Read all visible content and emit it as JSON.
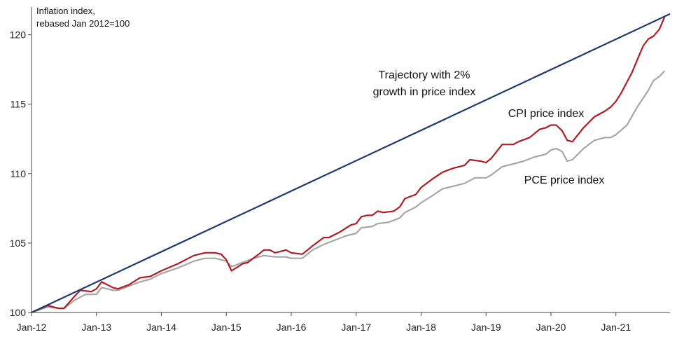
{
  "chart_data": {
    "type": "line",
    "title": "",
    "ylabel_lines": [
      "Inflation  index,",
      "rebased Jan 2012=100"
    ],
    "xlabel": "",
    "ylim": [
      100,
      122
    ],
    "yticks": [
      100,
      105,
      110,
      115,
      120
    ],
    "x_range": [
      2012.0,
      2021.833
    ],
    "xticks": [
      {
        "label": "Jan-12",
        "x": 2012
      },
      {
        "label": "Jan-13",
        "x": 2013
      },
      {
        "label": "Jan-14",
        "x": 2014
      },
      {
        "label": "Jan-15",
        "x": 2015
      },
      {
        "label": "Jan-16",
        "x": 2016
      },
      {
        "label": "Jan-17",
        "x": 2017
      },
      {
        "label": "Jan-18",
        "x": 2018
      },
      {
        "label": "Jan-19",
        "x": 2019
      },
      {
        "label": "Jan-20",
        "x": 2020
      },
      {
        "label": "Jan-21",
        "x": 2021
      }
    ],
    "grid": false,
    "legend": "none",
    "series": [
      {
        "name": "Trajectory with 2% growth in price index",
        "label_lines": [
          "Trajectory with 2%",
          "growth in price index"
        ],
        "color": "#1f3a6e",
        "points": [
          [
            2012.0,
            100.0
          ],
          [
            2021.833,
            121.5
          ]
        ]
      },
      {
        "name": "CPI price index",
        "label_lines": [
          "CPI price index"
        ],
        "color": "#b01c22",
        "points": [
          [
            2012.0,
            100.0
          ],
          [
            2012.25,
            100.5
          ],
          [
            2012.33,
            100.4
          ],
          [
            2012.42,
            100.3
          ],
          [
            2012.5,
            100.3
          ],
          [
            2012.67,
            101.2
          ],
          [
            2012.75,
            101.6
          ],
          [
            2012.92,
            101.5
          ],
          [
            2013.0,
            101.7
          ],
          [
            2013.08,
            102.2
          ],
          [
            2013.25,
            101.8
          ],
          [
            2013.33,
            101.7
          ],
          [
            2013.5,
            102.0
          ],
          [
            2013.67,
            102.5
          ],
          [
            2013.83,
            102.6
          ],
          [
            2014.0,
            103.0
          ],
          [
            2014.25,
            103.5
          ],
          [
            2014.5,
            104.1
          ],
          [
            2014.67,
            104.3
          ],
          [
            2014.83,
            104.3
          ],
          [
            2014.92,
            104.2
          ],
          [
            2015.0,
            103.8
          ],
          [
            2015.08,
            103.0
          ],
          [
            2015.25,
            103.5
          ],
          [
            2015.33,
            103.6
          ],
          [
            2015.5,
            104.2
          ],
          [
            2015.58,
            104.5
          ],
          [
            2015.67,
            104.5
          ],
          [
            2015.75,
            104.3
          ],
          [
            2015.92,
            104.5
          ],
          [
            2016.0,
            104.3
          ],
          [
            2016.17,
            104.2
          ],
          [
            2016.33,
            104.8
          ],
          [
            2016.5,
            105.4
          ],
          [
            2016.58,
            105.4
          ],
          [
            2016.75,
            105.8
          ],
          [
            2016.92,
            106.3
          ],
          [
            2017.0,
            106.4
          ],
          [
            2017.08,
            106.9
          ],
          [
            2017.17,
            107.0
          ],
          [
            2017.25,
            107.0
          ],
          [
            2017.33,
            107.3
          ],
          [
            2017.42,
            107.2
          ],
          [
            2017.58,
            107.3
          ],
          [
            2017.67,
            107.6
          ],
          [
            2017.75,
            108.2
          ],
          [
            2017.92,
            108.5
          ],
          [
            2018.0,
            109.0
          ],
          [
            2018.17,
            109.6
          ],
          [
            2018.33,
            110.1
          ],
          [
            2018.5,
            110.4
          ],
          [
            2018.67,
            110.6
          ],
          [
            2018.75,
            111.0
          ],
          [
            2018.92,
            110.9
          ],
          [
            2019.0,
            110.8
          ],
          [
            2019.08,
            111.1
          ],
          [
            2019.25,
            112.1
          ],
          [
            2019.42,
            112.1
          ],
          [
            2019.5,
            112.3
          ],
          [
            2019.67,
            112.6
          ],
          [
            2019.83,
            113.2
          ],
          [
            2019.92,
            113.3
          ],
          [
            2020.0,
            113.5
          ],
          [
            2020.08,
            113.5
          ],
          [
            2020.17,
            113.1
          ],
          [
            2020.25,
            112.4
          ],
          [
            2020.33,
            112.3
          ],
          [
            2020.5,
            113.3
          ],
          [
            2020.67,
            114.1
          ],
          [
            2020.83,
            114.5
          ],
          [
            2020.92,
            114.8
          ],
          [
            2021.0,
            115.2
          ],
          [
            2021.08,
            115.8
          ],
          [
            2021.25,
            117.3
          ],
          [
            2021.33,
            118.2
          ],
          [
            2021.42,
            119.2
          ],
          [
            2021.5,
            119.7
          ],
          [
            2021.58,
            119.9
          ],
          [
            2021.67,
            120.4
          ],
          [
            2021.75,
            121.3
          ]
        ]
      },
      {
        "name": "PCE price index",
        "label_lines": [
          "PCE price index"
        ],
        "color": "#a6a6a6",
        "points": [
          [
            2012.0,
            100.0
          ],
          [
            2012.25,
            100.4
          ],
          [
            2012.42,
            100.3
          ],
          [
            2012.5,
            100.3
          ],
          [
            2012.67,
            100.9
          ],
          [
            2012.83,
            101.3
          ],
          [
            2012.92,
            101.3
          ],
          [
            2013.0,
            101.3
          ],
          [
            2013.08,
            101.8
          ],
          [
            2013.25,
            101.6
          ],
          [
            2013.33,
            101.6
          ],
          [
            2013.5,
            101.9
          ],
          [
            2013.67,
            102.2
          ],
          [
            2013.83,
            102.4
          ],
          [
            2014.0,
            102.8
          ],
          [
            2014.25,
            103.2
          ],
          [
            2014.5,
            103.7
          ],
          [
            2014.67,
            103.9
          ],
          [
            2014.83,
            103.9
          ],
          [
            2015.0,
            103.7
          ],
          [
            2015.08,
            103.3
          ],
          [
            2015.25,
            103.6
          ],
          [
            2015.42,
            103.9
          ],
          [
            2015.58,
            104.1
          ],
          [
            2015.75,
            104.0
          ],
          [
            2015.92,
            104.0
          ],
          [
            2016.0,
            103.9
          ],
          [
            2016.17,
            103.9
          ],
          [
            2016.33,
            104.5
          ],
          [
            2016.5,
            104.9
          ],
          [
            2016.67,
            105.2
          ],
          [
            2016.83,
            105.5
          ],
          [
            2017.0,
            105.7
          ],
          [
            2017.08,
            106.1
          ],
          [
            2017.25,
            106.2
          ],
          [
            2017.33,
            106.4
          ],
          [
            2017.5,
            106.5
          ],
          [
            2017.67,
            106.8
          ],
          [
            2017.75,
            107.2
          ],
          [
            2017.92,
            107.6
          ],
          [
            2018.0,
            107.9
          ],
          [
            2018.17,
            108.4
          ],
          [
            2018.33,
            108.9
          ],
          [
            2018.5,
            109.1
          ],
          [
            2018.67,
            109.3
          ],
          [
            2018.83,
            109.7
          ],
          [
            2018.92,
            109.7
          ],
          [
            2019.0,
            109.7
          ],
          [
            2019.08,
            109.9
          ],
          [
            2019.25,
            110.5
          ],
          [
            2019.42,
            110.7
          ],
          [
            2019.58,
            110.9
          ],
          [
            2019.75,
            111.2
          ],
          [
            2019.92,
            111.4
          ],
          [
            2020.0,
            111.7
          ],
          [
            2020.08,
            111.8
          ],
          [
            2020.17,
            111.6
          ],
          [
            2020.25,
            110.9
          ],
          [
            2020.33,
            111.0
          ],
          [
            2020.5,
            111.8
          ],
          [
            2020.67,
            112.4
          ],
          [
            2020.83,
            112.6
          ],
          [
            2020.92,
            112.6
          ],
          [
            2021.0,
            112.8
          ],
          [
            2021.17,
            113.5
          ],
          [
            2021.33,
            114.8
          ],
          [
            2021.5,
            116.0
          ],
          [
            2021.58,
            116.7
          ],
          [
            2021.67,
            117.0
          ],
          [
            2021.75,
            117.4
          ]
        ]
      }
    ]
  }
}
